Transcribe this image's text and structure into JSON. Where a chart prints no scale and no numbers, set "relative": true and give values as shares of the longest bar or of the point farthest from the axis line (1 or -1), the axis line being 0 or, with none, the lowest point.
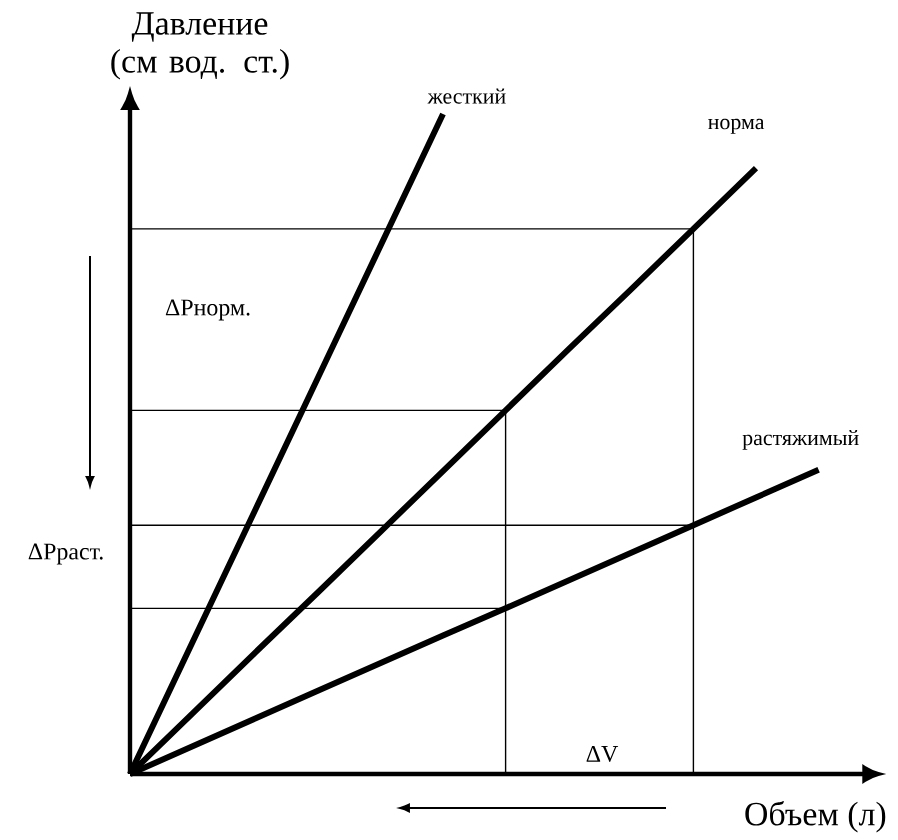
{
  "chart_data": {
    "type": "line",
    "relative": true,
    "ylabel": "Давление\n(см вод. ст.)",
    "xlabel": "Объем (л)",
    "categories": [
      null,
      null,
      null,
      null,
      null,
      null,
      null,
      null,
      null,
      null,
      null,
      null
    ],
    "series": [
      {
        "name": "жесткий",
        "color": "#000000",
        "values": [
          0,
          0.2,
          0.4,
          0.6,
          0.8,
          1.0,
          null,
          null,
          null,
          null,
          null,
          null
        ]
      },
      {
        "name": "норма",
        "color": "#000000",
        "values": [
          0,
          0.092,
          0.184,
          0.275,
          0.367,
          0.459,
          0.551,
          0.643,
          0.734,
          0.826,
          0.918,
          null
        ]
      },
      {
        "name": "растяжимый",
        "color": "#000000",
        "values": [
          0,
          0.042,
          0.084,
          0.126,
          0.168,
          0.21,
          0.251,
          0.293,
          0.335,
          0.377,
          0.419,
          0.461
        ]
      },
      {
        "color": "#000000",
        "values": [
          0.826,
          0.826,
          0.826,
          0.826,
          0.826,
          0.826,
          0.826,
          0.826,
          0.826,
          0.826,
          null,
          null
        ]
      },
      {
        "color": "#000000",
        "values": [
          0.551,
          0.551,
          0.551,
          0.551,
          0.551,
          0.551,
          0.551,
          null,
          null,
          null,
          null,
          null
        ]
      },
      {
        "color": "#000000",
        "values": [
          0.377,
          0.377,
          0.377,
          0.377,
          0.377,
          0.377,
          0.377,
          0.377,
          0.377,
          0.377,
          null,
          null
        ]
      },
      {
        "color": "#000000",
        "values": [
          0.251,
          0.251,
          0.251,
          0.251,
          0.251,
          0.251,
          0.251,
          null,
          null,
          null,
          null,
          null
        ]
      }
    ],
    "annotations": [
      "ΔPнорм.",
      "ΔPраст.",
      "ΔV"
    ]
  }
}
